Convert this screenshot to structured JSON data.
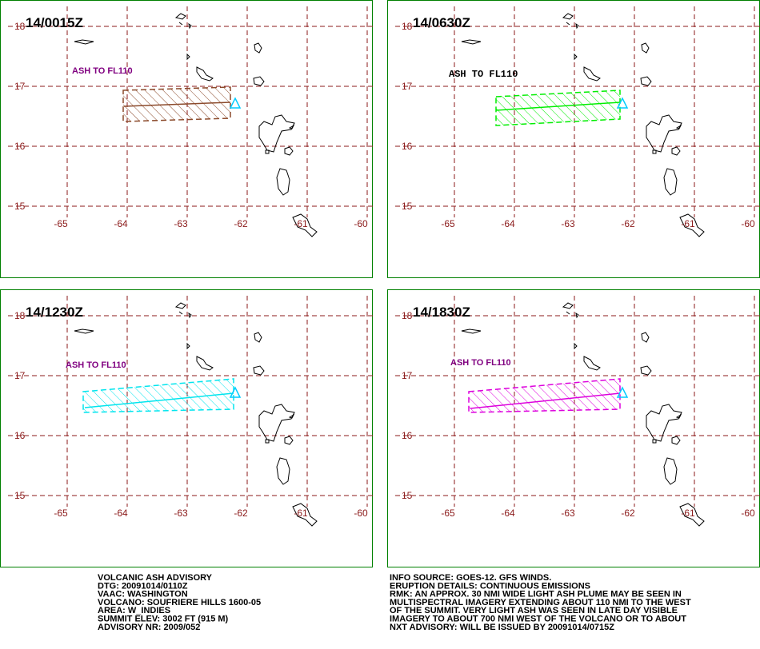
{
  "panels": [
    {
      "time": "14/0015Z",
      "ash_label": "ASH TO FL110",
      "color": "#8b4a2b",
      "label_color": "#800080"
    },
    {
      "time": "14/0630Z",
      "ash_label": "ASH TO FL110",
      "color": "#00ee00",
      "label_color": "#000000"
    },
    {
      "time": "14/1230Z",
      "ash_label": "ASH TO FL110",
      "color": "#00e5ee",
      "label_color": "#800080"
    },
    {
      "time": "14/1830Z",
      "ash_label": "ASH TO FL110",
      "color": "#dd00dd",
      "label_color": "#800080"
    }
  ],
  "lon_labels": [
    "-65",
    "-64",
    "-63",
    "-62",
    "-61",
    "-60"
  ],
  "lat_labels": [
    "18",
    "17",
    "16",
    "15"
  ],
  "advisory_left": [
    "VOLCANIC ASH ADVISORY",
    "DTG: 20091014/0110Z",
    "VAAC: WASHINGTON",
    "VOLCANO: SOUFRIERE HILLS 1600-05",
    "AREA: W_INDIES",
    "SUMMIT ELEV: 3002 FT (915 M)",
    "ADVISORY NR: 2009/052"
  ],
  "advisory_right": [
    "INFO SOURCE: GOES-12. GFS WINDS.",
    "ERUPTION DETAILS: CONTINUOUS EMISSIONS",
    "RMK: AN APPROX. 30 NMI WIDE LIGHT ASH PLUME MAY BE SEEN IN",
    "MULTISPECTRAL IMAGERY EXTENDING ABOUT 110 NMI TO THE WEST",
    "OF THE SUMMIT. VERY LIGHT ASH WAS SEEN IN LATE DAY VISIBLE",
    "IMAGERY TO ABOUT 700 NMI WEST OF THE VOLCANO OR TO ABOUT",
    "NXT ADVISORY: WILL BE ISSUED BY 20091014/0715Z"
  ]
}
